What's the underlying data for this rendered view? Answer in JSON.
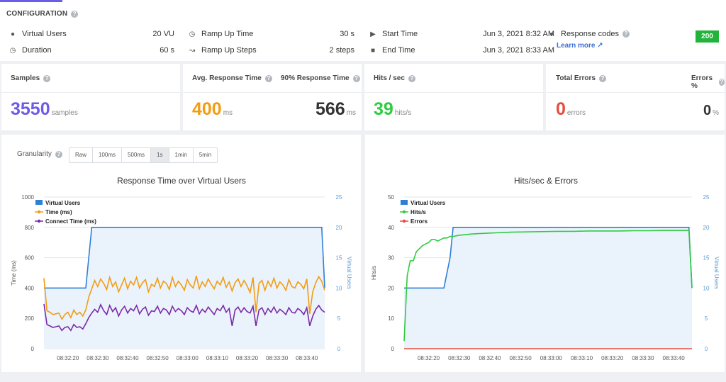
{
  "config": {
    "title": "CONFIGURATION",
    "virtual_users_label": "Virtual Users",
    "virtual_users_value": "20 VU",
    "duration_label": "Duration",
    "duration_value": "60 s",
    "ramp_up_time_label": "Ramp Up Time",
    "ramp_up_time_value": "30 s",
    "ramp_up_steps_label": "Ramp Up Steps",
    "ramp_up_steps_value": "2 steps",
    "start_time_label": "Start Time",
    "start_time_value": "Jun 3, 2021 8:32 AM",
    "end_time_label": "End Time",
    "end_time_value": "Jun 3, 2021 8:33 AM",
    "response_codes_label": "Response codes",
    "response_code": "200",
    "learn_more": "Learn more"
  },
  "stats": {
    "samples_label": "Samples",
    "samples_value": "3550",
    "samples_unit": "samples",
    "avg_label": "Avg. Response Time",
    "avg_value": "400",
    "avg_unit": "ms",
    "p90_label": "90% Response Time",
    "p90_value": "566",
    "p90_unit": "ms",
    "hits_label": "Hits / sec",
    "hits_value": "39",
    "hits_unit": "hits/s",
    "errors_label": "Total Errors",
    "errors_value": "0",
    "errors_unit": "errors",
    "errors_pct_label": "Errors %",
    "errors_pct_value": "0",
    "errors_pct_unit": "%"
  },
  "granularity": {
    "label": "Granularity",
    "options": [
      "Raw",
      "100ms",
      "500ms",
      "1s",
      "1min",
      "5min"
    ],
    "selected": "1s"
  },
  "colors": {
    "purple": "#6c5ce7",
    "orange": "#f39c12",
    "green": "#2ecc40",
    "red": "#e74c3c",
    "blue": "#2f7fd6",
    "violet": "#7b2ba8"
  },
  "chart_data": [
    {
      "type": "line",
      "title": "Response Time over Virtual Users",
      "ylabel": "Time (ms)",
      "y2label": "Virtual Users",
      "ylim": [
        0,
        1000
      ],
      "y2lim": [
        0,
        25
      ],
      "yticks": [
        0,
        200,
        400,
        600,
        800,
        1000
      ],
      "y2ticks": [
        0,
        5,
        10,
        15,
        20,
        25
      ],
      "xlim": [
        0,
        94
      ],
      "xticks": [
        8,
        18,
        28,
        38,
        48,
        58,
        68,
        78,
        88
      ],
      "xticklabels": [
        "08:32:20",
        "08:32:30",
        "08:32:40",
        "08:32:50",
        "08:33:00",
        "08:33:10",
        "08:33:20",
        "08:33:30",
        "08:33:40"
      ],
      "legend": [
        "Virtual Users",
        "Time (ms)",
        "Connect Time (ms)"
      ],
      "series": [
        {
          "name": "Virtual Users",
          "axis": "y2",
          "x": [
            0,
            14,
            15,
            16,
            93,
            94
          ],
          "values": [
            10,
            10,
            15,
            20,
            20,
            10
          ]
        },
        {
          "name": "Time (ms)",
          "axis": "y",
          "x": [
            0,
            1,
            2,
            3,
            4,
            5,
            6,
            7,
            8,
            9,
            10,
            11,
            12,
            13,
            14,
            15,
            16,
            17,
            18,
            19,
            20,
            21,
            22,
            23,
            24,
            25,
            26,
            27,
            28,
            29,
            30,
            31,
            32,
            33,
            34,
            35,
            36,
            37,
            38,
            39,
            40,
            41,
            42,
            43,
            44,
            45,
            46,
            47,
            48,
            49,
            50,
            51,
            52,
            53,
            54,
            55,
            56,
            57,
            58,
            59,
            60,
            61,
            62,
            63,
            64,
            65,
            66,
            67,
            68,
            69,
            70,
            71,
            72,
            73,
            74,
            75,
            76,
            77,
            78,
            79,
            80,
            81,
            82,
            83,
            84,
            85,
            86,
            87,
            88,
            89,
            90,
            91,
            92,
            93,
            94
          ],
          "values": [
            465,
            250,
            240,
            225,
            230,
            235,
            195,
            225,
            240,
            205,
            255,
            225,
            240,
            215,
            255,
            340,
            395,
            450,
            410,
            460,
            430,
            390,
            470,
            410,
            440,
            375,
            420,
            465,
            395,
            445,
            420,
            470,
            400,
            435,
            455,
            375,
            425,
            410,
            465,
            400,
            445,
            430,
            390,
            470,
            410,
            445,
            420,
            385,
            455,
            420,
            400,
            480,
            395,
            440,
            410,
            460,
            425,
            395,
            445,
            420,
            470,
            405,
            440,
            380,
            435,
            460,
            410,
            450,
            415,
            370,
            470,
            240,
            430,
            450,
            385,
            445,
            410,
            465,
            400,
            440,
            420,
            385,
            455,
            410,
            400,
            440,
            425,
            395,
            460,
            230,
            375,
            435,
            475,
            445,
            385
          ]
        },
        {
          "name": "Connect Time (ms)",
          "axis": "y",
          "x": [
            0,
            1,
            2,
            3,
            4,
            5,
            6,
            7,
            8,
            9,
            10,
            11,
            12,
            13,
            14,
            15,
            16,
            17,
            18,
            19,
            20,
            21,
            22,
            23,
            24,
            25,
            26,
            27,
            28,
            29,
            30,
            31,
            32,
            33,
            34,
            35,
            36,
            37,
            38,
            39,
            40,
            41,
            42,
            43,
            44,
            45,
            46,
            47,
            48,
            49,
            50,
            51,
            52,
            53,
            54,
            55,
            56,
            57,
            58,
            59,
            60,
            61,
            62,
            63,
            64,
            65,
            66,
            67,
            68,
            69,
            70,
            71,
            72,
            73,
            74,
            75,
            76,
            77,
            78,
            79,
            80,
            81,
            82,
            83,
            84,
            85,
            86,
            87,
            88,
            89,
            90,
            91,
            92,
            93,
            94
          ],
          "values": [
            295,
            160,
            150,
            140,
            145,
            150,
            120,
            140,
            145,
            120,
            160,
            140,
            145,
            130,
            165,
            205,
            235,
            260,
            240,
            290,
            250,
            225,
            285,
            245,
            270,
            215,
            255,
            280,
            235,
            265,
            250,
            285,
            230,
            260,
            275,
            220,
            250,
            245,
            280,
            235,
            265,
            255,
            225,
            280,
            245,
            265,
            250,
            225,
            270,
            250,
            240,
            285,
            230,
            260,
            240,
            275,
            250,
            225,
            265,
            250,
            285,
            240,
            265,
            150,
            255,
            275,
            240,
            270,
            245,
            235,
            280,
            150,
            255,
            270,
            225,
            265,
            240,
            275,
            235,
            260,
            245,
            225,
            270,
            240,
            235,
            265,
            250,
            225,
            270,
            150,
            215,
            260,
            285,
            255,
            240
          ]
        }
      ]
    },
    {
      "type": "line",
      "title": "Hits/sec & Errors",
      "ylabel": "Hits/s",
      "y2label": "Virtual Users",
      "ylim": [
        0,
        50
      ],
      "y2lim": [
        0,
        25
      ],
      "yticks": [
        0,
        10,
        20,
        30,
        40,
        50
      ],
      "y2ticks": [
        0,
        5,
        10,
        15,
        20,
        25
      ],
      "xlim": [
        0,
        94
      ],
      "xticks": [
        8,
        18,
        28,
        38,
        48,
        58,
        68,
        78,
        88
      ],
      "xticklabels": [
        "08:32:20",
        "08:32:30",
        "08:32:40",
        "08:32:50",
        "08:33:00",
        "08:33:10",
        "08:33:20",
        "08:33:30",
        "08:33:40"
      ],
      "legend": [
        "Virtual Users",
        "Hits/s",
        "Errors"
      ],
      "series": [
        {
          "name": "Virtual Users",
          "axis": "y2",
          "x": [
            0,
            13,
            15,
            16,
            93,
            94
          ],
          "values": [
            10,
            10,
            15,
            20,
            20,
            10
          ]
        },
        {
          "name": "Hits/s",
          "axis": "y",
          "x": [
            0,
            1,
            2,
            3,
            4,
            5,
            6,
            7,
            8,
            9,
            10,
            11,
            12,
            13,
            14,
            15,
            16,
            17,
            18,
            20,
            22,
            25,
            30,
            35,
            40,
            45,
            50,
            55,
            60,
            65,
            70,
            75,
            80,
            85,
            90,
            93,
            94
          ],
          "values": [
            2.5,
            24,
            29,
            29,
            32,
            33,
            34,
            34.5,
            35,
            36,
            36,
            35.5,
            36,
            36.5,
            36.5,
            37,
            37,
            37.2,
            37.4,
            37.6,
            37.8,
            38,
            38.2,
            38.4,
            38.5,
            38.6,
            38.7,
            38.7,
            38.8,
            38.8,
            38.8,
            38.9,
            38.9,
            39,
            39,
            39,
            20
          ]
        },
        {
          "name": "Errors",
          "axis": "y",
          "x": [
            0,
            94
          ],
          "values": [
            0,
            0
          ]
        }
      ]
    }
  ]
}
